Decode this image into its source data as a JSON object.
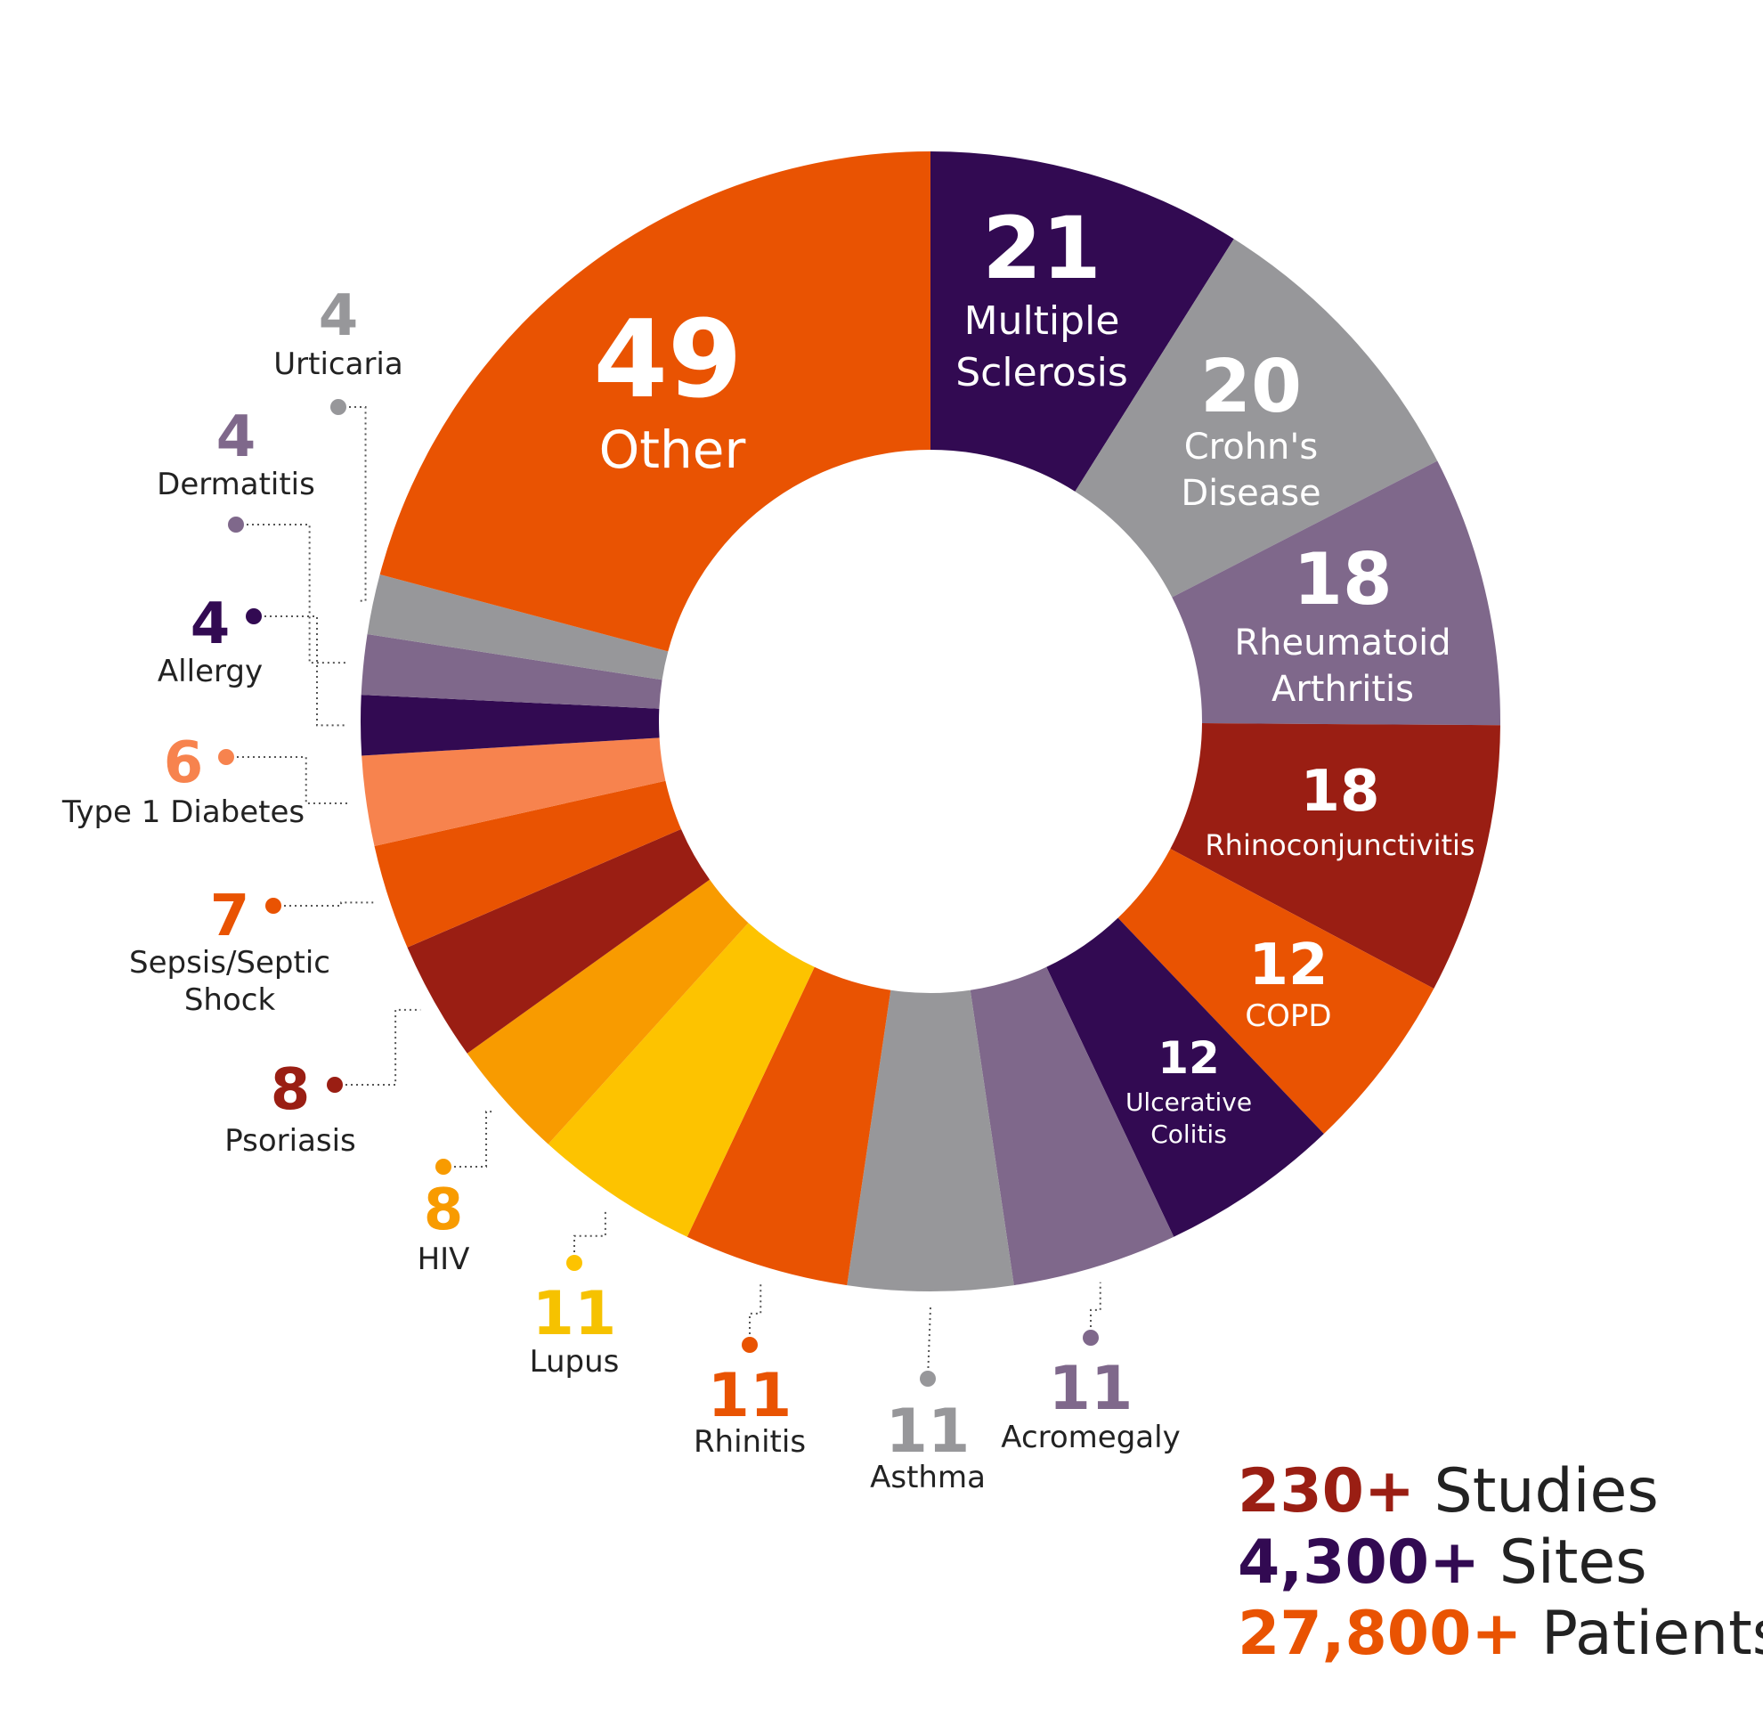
{
  "chart_data": {
    "type": "donut",
    "slices": [
      {
        "label": "Multiple Sclerosis",
        "value": 21,
        "color": "#320a52"
      },
      {
        "label": "Crohn's Disease",
        "value": 20,
        "color": "#97979a"
      },
      {
        "label": "Rheumatoid Arthritis",
        "value": 18,
        "color": "#7f688b"
      },
      {
        "label": "Rhinoconjunctivitis",
        "value": 18,
        "color": "#9a1e13"
      },
      {
        "label": "COPD",
        "value": 12,
        "color": "#e95302"
      },
      {
        "label": "Ulcerative Colitis",
        "value": 12,
        "color": "#320a52"
      },
      {
        "label": "Acromegaly",
        "value": 11,
        "color": "#7f688b"
      },
      {
        "label": "Asthma",
        "value": 11,
        "color": "#97979a"
      },
      {
        "label": "Rhinitis",
        "value": 11,
        "color": "#e95302"
      },
      {
        "label": "Lupus",
        "value": 11,
        "color": "#fdc300"
      },
      {
        "label": "HIV",
        "value": 8,
        "color": "#f89b00"
      },
      {
        "label": "Psoriasis",
        "value": 8,
        "color": "#9a1e13"
      },
      {
        "label": "Sepsis/Septic Shock",
        "value": 7,
        "color": "#e95302"
      },
      {
        "label": "Type 1 Diabetes",
        "value": 6,
        "color": "#f7834e"
      },
      {
        "label": "Allergy",
        "value": 4,
        "color": "#320a52"
      },
      {
        "label": "Dermatitis",
        "value": 4,
        "color": "#7f688b"
      },
      {
        "label": "Urticaria",
        "value": 4,
        "color": "#97979a"
      },
      {
        "label": "Other",
        "value": 49,
        "color": "#e95302"
      }
    ]
  },
  "summary": [
    {
      "number": "230+",
      "text": " Studies",
      "color": "#9a1e13"
    },
    {
      "number": "4,300+",
      "text": " Sites",
      "color": "#320a52"
    },
    {
      "number": "27,800+",
      "text": " Patients",
      "color": "#e95302"
    }
  ]
}
